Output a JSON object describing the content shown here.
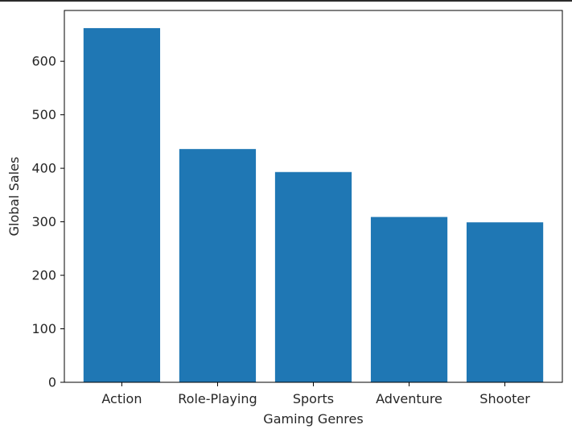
{
  "chart_data": {
    "type": "bar",
    "categories": [
      "Action",
      "Role-Playing",
      "Sports",
      "Adventure",
      "Shooter"
    ],
    "values": [
      662,
      436,
      393,
      309,
      299
    ],
    "title": "",
    "xlabel": "Gaming Genres",
    "ylabel": "Global Sales",
    "ylim": [
      0,
      695
    ],
    "yticks": [
      0,
      100,
      200,
      300,
      400,
      500,
      600
    ],
    "bar_color": "#1f77b4",
    "grid": false
  }
}
